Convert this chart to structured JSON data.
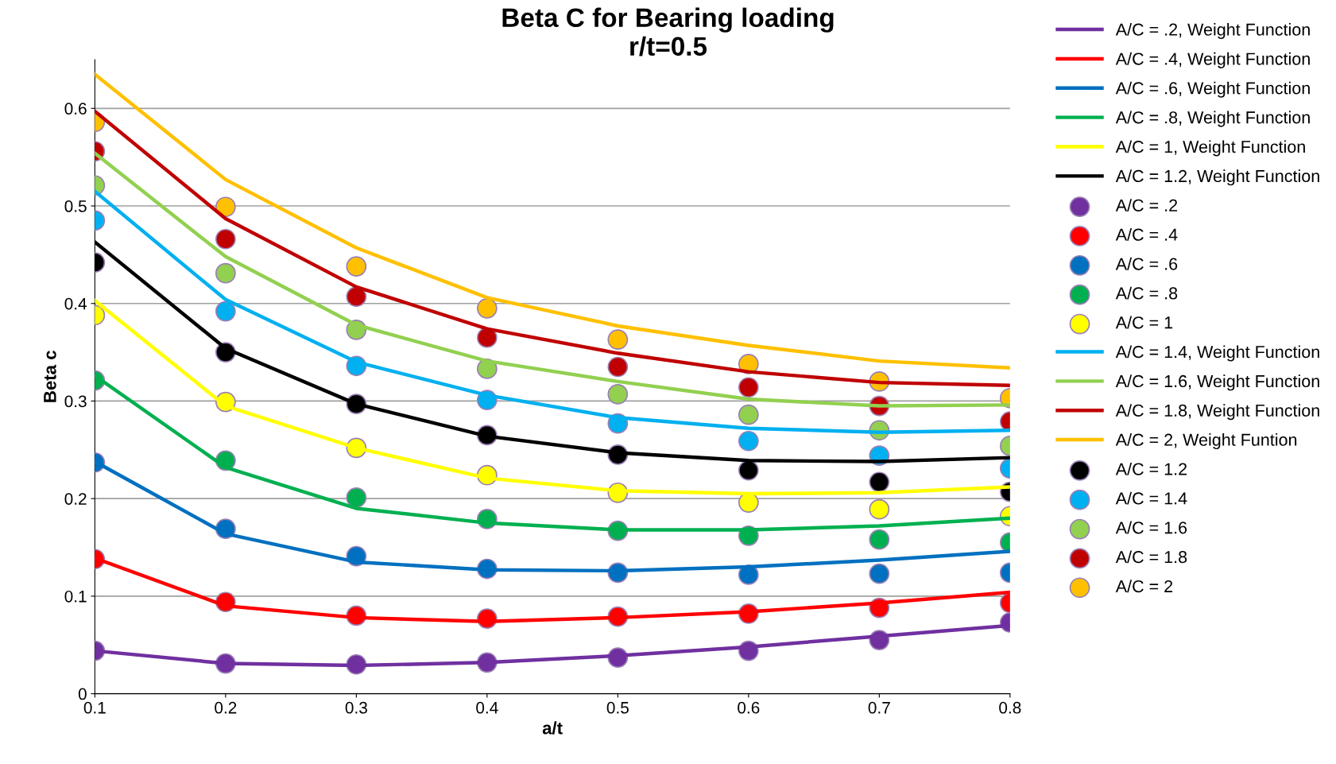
{
  "chart_data": {
    "type": "line",
    "title": "Beta C for Bearing loading\nr/t=0.5",
    "xlabel": "a/t",
    "ylabel": "Beta c",
    "x": [
      0.1,
      0.2,
      0.3,
      0.4,
      0.5,
      0.6,
      0.7,
      0.8
    ],
    "xlim": [
      0.1,
      0.8
    ],
    "xticks": [
      0.1,
      0.2,
      0.3,
      0.4,
      0.5,
      0.6,
      0.7,
      0.8
    ],
    "ylim": [
      0,
      0.65
    ],
    "yticks": [
      0,
      0.1,
      0.2,
      0.3,
      0.4,
      0.5,
      0.6
    ],
    "grid": "y",
    "legend": "right",
    "series": [
      {
        "name": "A/C = .2, Weight Function",
        "marker": "none",
        "color": "#7030a0",
        "values": [
          0.044,
          0.031,
          0.029,
          0.032,
          0.039,
          0.048,
          0.059,
          0.07
        ]
      },
      {
        "name": "A/C = .4, Weight Function",
        "type": "line",
        "marker": "none",
        "color": "#ff0000",
        "values": [
          0.139,
          0.09,
          0.078,
          0.074,
          0.078,
          0.084,
          0.093,
          0.104
        ]
      },
      {
        "name": "A/C = .6, Weight Function",
        "type": "line",
        "marker": "none",
        "color": "#0070c0",
        "values": [
          0.238,
          0.164,
          0.135,
          0.127,
          0.126,
          0.13,
          0.137,
          0.146
        ]
      },
      {
        "name": "A/C = .8, Weight Function",
        "type": "line",
        "marker": "none",
        "color": "#00b050",
        "values": [
          0.326,
          0.232,
          0.19,
          0.175,
          0.168,
          0.168,
          0.172,
          0.18
        ]
      },
      {
        "name": "A/C = 1, Weight Function",
        "type": "line",
        "marker": "none",
        "color": "#ffff00",
        "values": [
          0.403,
          0.295,
          0.252,
          0.221,
          0.208,
          0.205,
          0.206,
          0.212
        ]
      },
      {
        "name": "A/C = 1.2, Weight Function",
        "type": "line",
        "marker": "none",
        "color": "#000000",
        "values": [
          0.463,
          0.354,
          0.297,
          0.264,
          0.247,
          0.239,
          0.238,
          0.242
        ]
      },
      {
        "name": "A/C = .2",
        "type": "scatter",
        "marker": "circle",
        "color": "#7030a0",
        "values": [
          0.044,
          0.031,
          0.03,
          0.032,
          0.037,
          0.044,
          0.055,
          0.073
        ]
      },
      {
        "name": "A/C = .4",
        "type": "scatter",
        "marker": "circle",
        "color": "#ff0000",
        "values": [
          0.138,
          0.094,
          0.08,
          0.077,
          0.079,
          0.082,
          0.088,
          0.093
        ]
      },
      {
        "name": "A/C = .6",
        "type": "scatter",
        "marker": "circle",
        "color": "#0070c0",
        "values": [
          0.237,
          0.169,
          0.141,
          0.128,
          0.124,
          0.122,
          0.123,
          0.124
        ]
      },
      {
        "name": "A/C = .8",
        "type": "scatter",
        "marker": "circle",
        "color": "#00b050",
        "values": [
          0.321,
          0.239,
          0.201,
          0.179,
          0.167,
          0.162,
          0.158,
          0.155
        ]
      },
      {
        "name": "A/C = 1",
        "type": "scatter",
        "marker": "circle",
        "color": "#ffff00",
        "values": [
          0.388,
          0.299,
          0.252,
          0.224,
          0.206,
          0.196,
          0.189,
          0.182
        ]
      },
      {
        "name": "A/C = 1.4, Weight Function",
        "type": "line",
        "marker": "none",
        "color": "#00b0f0",
        "values": [
          0.515,
          0.404,
          0.34,
          0.306,
          0.283,
          0.272,
          0.268,
          0.27
        ]
      },
      {
        "name": "A/C = 1.6, Weight Function",
        "type": "line",
        "marker": "none",
        "color": "#92d050",
        "values": [
          0.554,
          0.448,
          0.378,
          0.341,
          0.32,
          0.302,
          0.295,
          0.296
        ]
      },
      {
        "name": "A/C = 1.8, Weight Function",
        "type": "line",
        "marker": "none",
        "color": "#c00000",
        "values": [
          0.597,
          0.487,
          0.417,
          0.374,
          0.349,
          0.33,
          0.319,
          0.316
        ]
      },
      {
        "name": "A/C = 2, Weight Funtion",
        "type": "line",
        "marker": "none",
        "color": "#ffc000",
        "values": [
          0.635,
          0.527,
          0.457,
          0.406,
          0.377,
          0.357,
          0.341,
          0.334
        ]
      },
      {
        "name": "A/C = 1.2",
        "type": "scatter",
        "marker": "circle",
        "color": "#000000",
        "values": [
          0.442,
          0.35,
          0.297,
          0.265,
          0.245,
          0.229,
          0.217,
          0.207
        ]
      },
      {
        "name": "A/C = 1.4",
        "type": "scatter",
        "marker": "circle",
        "color": "#00b0f0",
        "values": [
          0.485,
          0.392,
          0.336,
          0.301,
          0.277,
          0.259,
          0.244,
          0.231
        ]
      },
      {
        "name": "A/C = 1.6",
        "type": "scatter",
        "marker": "circle",
        "color": "#92d050",
        "values": [
          0.521,
          0.431,
          0.373,
          0.333,
          0.307,
          0.286,
          0.27,
          0.254
        ]
      },
      {
        "name": "A/C = 1.8",
        "type": "scatter",
        "marker": "circle",
        "color": "#c00000",
        "values": [
          0.556,
          0.466,
          0.407,
          0.365,
          0.335,
          0.314,
          0.295,
          0.279
        ]
      },
      {
        "name": "A/C = 2",
        "type": "scatter",
        "marker": "circle",
        "color": "#ffc000",
        "values": [
          0.586,
          0.499,
          0.438,
          0.395,
          0.363,
          0.338,
          0.32,
          0.303
        ]
      }
    ]
  }
}
